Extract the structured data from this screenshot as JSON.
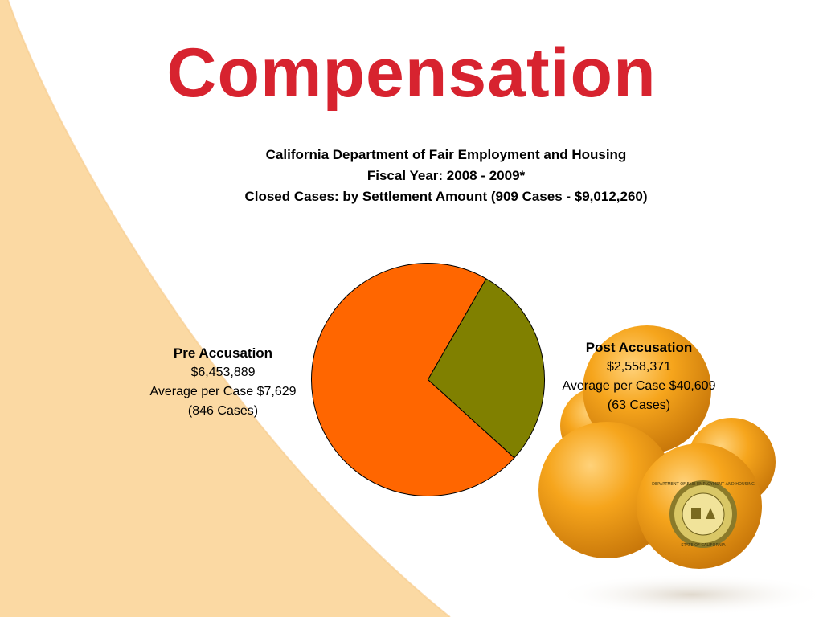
{
  "slide": {
    "title": "Compensation",
    "title_color": "#d7232f",
    "background_accent": "#fbd9a3"
  },
  "chart_data": {
    "type": "pie",
    "title_lines": [
      "California Department of Fair Employment and Housing",
      "Fiscal Year: 2008 - 2009*",
      "Closed Cases: by Settlement Amount (909 Cases - $9,012,260)"
    ],
    "slices": [
      {
        "name": "Pre Accusation",
        "value": 6453889,
        "amount_text": "$6,453,889",
        "average_text": "Average per Case $7,629",
        "cases_text": "(846 Cases)",
        "color": "#ff6600"
      },
      {
        "name": "Post Accusation",
        "value": 2558371,
        "amount_text": "$2,558,371",
        "average_text": "Average per Case $40,609",
        "cases_text": "(63 Cases)",
        "color": "#808000"
      }
    ],
    "start_angle_deg": 30,
    "legend": "none"
  },
  "decoration": {
    "oranges_icon": "orange-fruit-pyramid-icon",
    "seal_icon": "dfeh-seal-icon",
    "seal_text": "DEPARTMENT OF FAIR EMPLOYMENT AND HOUSING",
    "seal_subtext": "STATE OF CALIFORNIA"
  }
}
